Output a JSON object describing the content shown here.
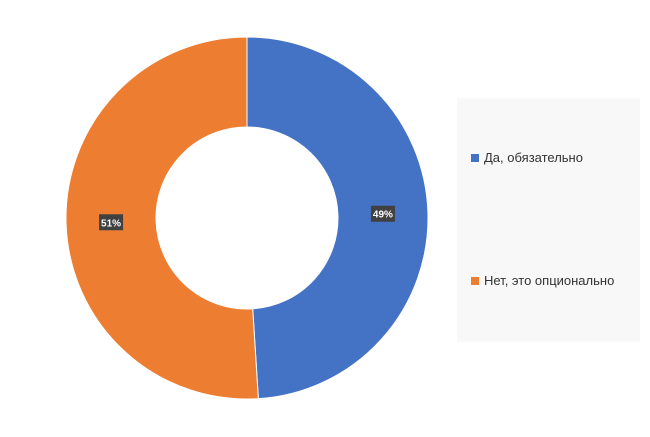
{
  "chart_data": {
    "type": "donut",
    "categories": [
      "Да, обязательно",
      "Нет, это опционально"
    ],
    "values": [
      49,
      51
    ],
    "labels": [
      "49%",
      "51%"
    ],
    "colors": [
      "#4472C4",
      "#ED7D31"
    ],
    "legend_position": "right"
  }
}
